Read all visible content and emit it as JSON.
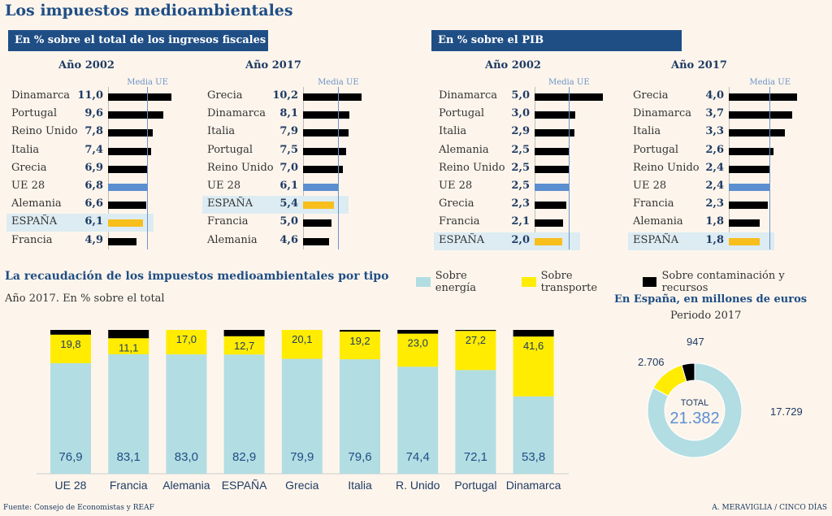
{
  "title": "Los impuestos medioambientales",
  "sections": {
    "fiscal": "En % sobre el total de los ingresos fiscales",
    "pib": "En % sobre el PIB"
  },
  "media_label": "Media UE",
  "colors": {
    "bar": "#000000",
    "eu": "#5b8fd0",
    "spain": "#f7be1c",
    "highlight": "#dcecf2",
    "energy": "#b2dde2",
    "transport": "#ffec00",
    "pollution": "#000000",
    "media_line": "#6b93c9"
  },
  "chart_data": [
    {
      "type": "bar",
      "orientation": "horizontal",
      "title": "Año 2002",
      "group": "En % sobre el total de los ingresos fiscales",
      "reference": {
        "label": "Media UE",
        "value": 6.8
      },
      "categories": [
        "Dinamarca",
        "Portugal",
        "Reino Unido",
        "Italia",
        "Grecia",
        "UE 28",
        "Alemania",
        "ESPAÑA",
        "Francia"
      ],
      "values": [
        11.0,
        9.6,
        7.8,
        7.4,
        6.9,
        6.8,
        6.6,
        6.1,
        4.9
      ],
      "labels": [
        "11,0",
        "9,6",
        "7,8",
        "7,4",
        "6,9",
        "6,8",
        "6,6",
        "6,1",
        "4,9"
      ]
    },
    {
      "type": "bar",
      "orientation": "horizontal",
      "title": "Año 2017",
      "group": "En % sobre el total de los ingresos fiscales",
      "reference": {
        "label": "Media UE",
        "value": 6.1
      },
      "categories": [
        "Grecia",
        "Dinamarca",
        "Italia",
        "Portugal",
        "Reino Unido",
        "UE 28",
        "ESPAÑA",
        "Francia",
        "Alemania"
      ],
      "values": [
        10.2,
        8.1,
        7.9,
        7.5,
        7.0,
        6.1,
        5.4,
        5.0,
        4.6
      ],
      "labels": [
        "10,2",
        "8,1",
        "7,9",
        "7,5",
        "7,0",
        "6,1",
        "5,4",
        "5,0",
        "4,6"
      ]
    },
    {
      "type": "bar",
      "orientation": "horizontal",
      "title": "Año 2002",
      "group": "En % sobre el PIB",
      "reference": {
        "label": "Media UE",
        "value": 2.5
      },
      "categories": [
        "Dinamarca",
        "Portugal",
        "Italia",
        "Alemania",
        "Reino Unido",
        "UE 28",
        "Grecia",
        "Francia",
        "ESPAÑA"
      ],
      "values": [
        5.0,
        3.0,
        2.9,
        2.5,
        2.5,
        2.5,
        2.3,
        2.1,
        2.0
      ],
      "labels": [
        "5,0",
        "3,0",
        "2,9",
        "2,5",
        "2,5",
        "2,5",
        "2,3",
        "2,1",
        "2,0"
      ]
    },
    {
      "type": "bar",
      "orientation": "horizontal",
      "title": "Año 2017",
      "group": "En % sobre el PIB",
      "reference": {
        "label": "Media UE",
        "value": 2.4
      },
      "categories": [
        "Grecia",
        "Dinamarca",
        "Italia",
        "Portugal",
        "Reino Unido",
        "UE 28",
        "Francia",
        "Alemania",
        "ESPAÑA"
      ],
      "values": [
        4.0,
        3.7,
        3.3,
        2.6,
        2.4,
        2.4,
        2.3,
        1.8,
        1.8
      ],
      "labels": [
        "4,0",
        "3,7",
        "3,3",
        "2,6",
        "2,4",
        "2,4",
        "2,3",
        "1,8",
        "1,8"
      ]
    },
    {
      "type": "bar",
      "stacked": true,
      "title": "La recaudación de los impuestos medioambientales por tipo",
      "subtitle": "Año 2017. En % sobre el total",
      "categories": [
        "UE 28",
        "Francia",
        "Alemania",
        "ESPAÑA",
        "Grecia",
        "Italia",
        "R. Unido",
        "Portugal",
        "Dinamarca"
      ],
      "series": [
        {
          "name": "Sobre energía",
          "values": [
            76.9,
            83.1,
            83.0,
            82.9,
            79.9,
            79.6,
            74.4,
            72.1,
            53.8
          ],
          "labels": [
            "76,9",
            "83,1",
            "83,0",
            "82,9",
            "79,9",
            "79,6",
            "74,4",
            "72,1",
            "53,8"
          ]
        },
        {
          "name": "Sobre transporte",
          "values": [
            19.8,
            11.1,
            17.0,
            12.7,
            20.1,
            19.2,
            23.0,
            27.2,
            41.6
          ],
          "labels": [
            "19,8",
            "11,1",
            "17,0",
            "12,7",
            "20,1",
            "19,2",
            "23,0",
            "27,2",
            "41,6"
          ]
        },
        {
          "name": "Sobre contaminación y recursos",
          "values": [
            3.3,
            5.8,
            0.0,
            4.4,
            0.0,
            1.2,
            2.6,
            0.7,
            4.6
          ]
        }
      ],
      "ylim": [
        0,
        100
      ]
    },
    {
      "type": "pie",
      "donut": true,
      "title": "En España, en millones de euros",
      "subtitle": "Periodo 2017",
      "center_label": "TOTAL",
      "center_value": "21.382",
      "slices": [
        {
          "name": "Sobre energía",
          "value": 17729,
          "label": "17.729"
        },
        {
          "name": "Sobre transporte",
          "value": 2706,
          "label": "2.706"
        },
        {
          "name": "Sobre contaminación y recursos",
          "value": 947,
          "label": "947"
        }
      ]
    }
  ],
  "footer": {
    "source": "Fuente: Consejo de Economistas y REAF",
    "credit": "A. MERAVIGLIA / CINCO DÍAS"
  }
}
